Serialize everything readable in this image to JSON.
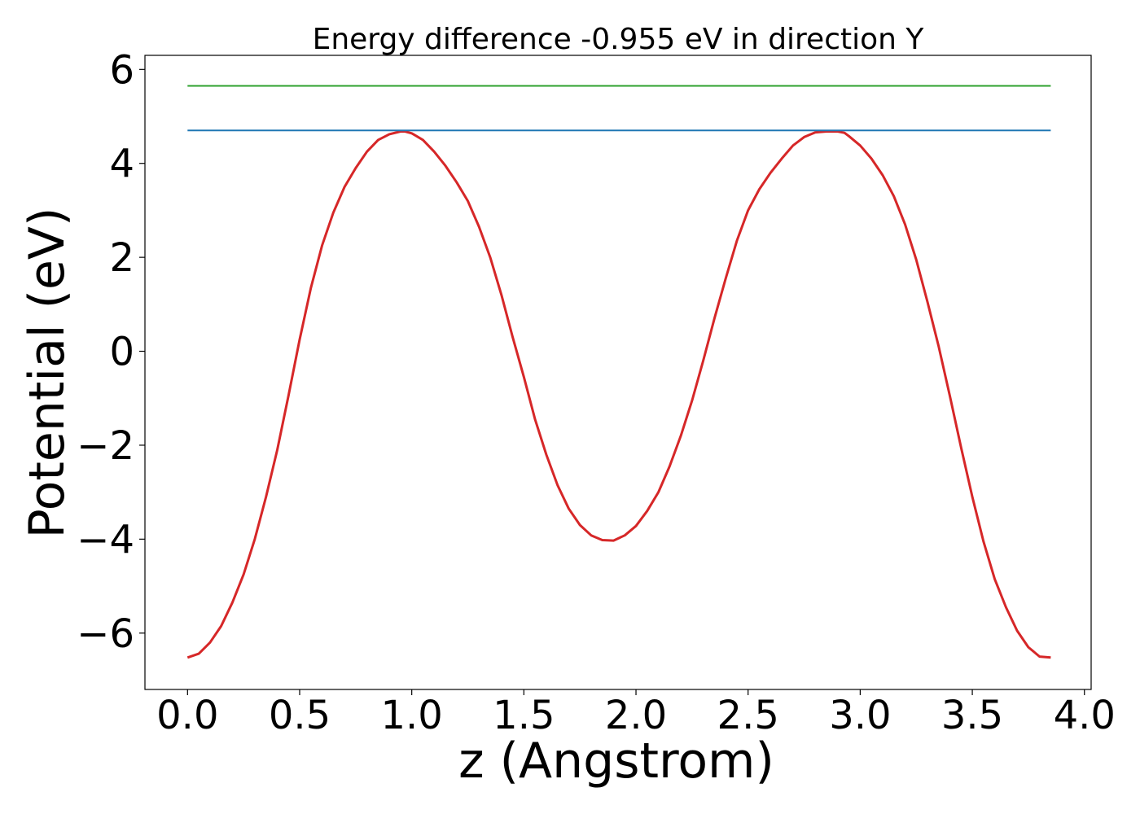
{
  "chart_data": {
    "type": "line",
    "title": "Energy difference -0.955 eV in direction Y",
    "xlabel": "z (Angstrom)",
    "ylabel": "Potential (eV)",
    "xlim": [
      -0.19,
      4.03
    ],
    "ylim": [
      -7.2,
      6.3
    ],
    "xticks": [
      0.0,
      0.5,
      1.0,
      1.5,
      2.0,
      2.5,
      3.0,
      3.5,
      4.0
    ],
    "xtick_labels": [
      "0.0",
      "0.5",
      "1.0",
      "1.5",
      "2.0",
      "2.5",
      "3.0",
      "3.5",
      "4.0"
    ],
    "yticks": [
      -6,
      -4,
      -2,
      0,
      2,
      4,
      6
    ],
    "ytick_labels": [
      "−6",
      "−4",
      "−2",
      "0",
      "2",
      "4",
      "6"
    ],
    "grid": false,
    "series": [
      {
        "color": "#d62728",
        "x": [
          0.0,
          0.05,
          0.1,
          0.15,
          0.2,
          0.25,
          0.3,
          0.35,
          0.4,
          0.45,
          0.5,
          0.55,
          0.6,
          0.65,
          0.7,
          0.75,
          0.8,
          0.85,
          0.9,
          0.95,
          0.97,
          1.0,
          1.05,
          1.1,
          1.15,
          1.2,
          1.25,
          1.3,
          1.35,
          1.4,
          1.45,
          1.5,
          1.55,
          1.6,
          1.65,
          1.7,
          1.75,
          1.8,
          1.85,
          1.9,
          1.95,
          2.0,
          2.05,
          2.1,
          2.15,
          2.2,
          2.25,
          2.3,
          2.35,
          2.4,
          2.45,
          2.5,
          2.55,
          2.6,
          2.65,
          2.7,
          2.75,
          2.8,
          2.85,
          2.9,
          2.93,
          2.95,
          3.0,
          3.05,
          3.1,
          3.15,
          3.2,
          3.25,
          3.3,
          3.35,
          3.4,
          3.45,
          3.5,
          3.55,
          3.6,
          3.65,
          3.7,
          3.75,
          3.8,
          3.85
        ],
        "y": [
          -6.52,
          -6.44,
          -6.2,
          -5.85,
          -5.35,
          -4.75,
          -4.0,
          -3.1,
          -2.1,
          -0.95,
          0.25,
          1.35,
          2.25,
          2.95,
          3.5,
          3.9,
          4.25,
          4.5,
          4.62,
          4.68,
          4.68,
          4.64,
          4.5,
          4.25,
          3.95,
          3.6,
          3.2,
          2.65,
          2.0,
          1.2,
          0.3,
          -0.55,
          -1.45,
          -2.2,
          -2.85,
          -3.35,
          -3.7,
          -3.92,
          -4.02,
          -4.03,
          -3.92,
          -3.72,
          -3.4,
          -3.0,
          -2.45,
          -1.8,
          -1.05,
          -0.2,
          0.7,
          1.55,
          2.35,
          3.0,
          3.45,
          3.8,
          4.1,
          4.38,
          4.56,
          4.66,
          4.68,
          4.68,
          4.65,
          4.58,
          4.38,
          4.1,
          3.75,
          3.3,
          2.7,
          1.95,
          1.05,
          0.1,
          -0.95,
          -2.05,
          -3.1,
          -4.05,
          -4.85,
          -5.45,
          -5.95,
          -6.3,
          -6.5,
          -6.52
        ]
      },
      {
        "color": "#1f77b4",
        "x": [
          0.0,
          3.85
        ],
        "y": [
          4.7,
          4.7
        ]
      },
      {
        "color": "#2ca02c",
        "x": [
          0.0,
          3.85
        ],
        "y": [
          5.65,
          5.65
        ]
      }
    ]
  }
}
